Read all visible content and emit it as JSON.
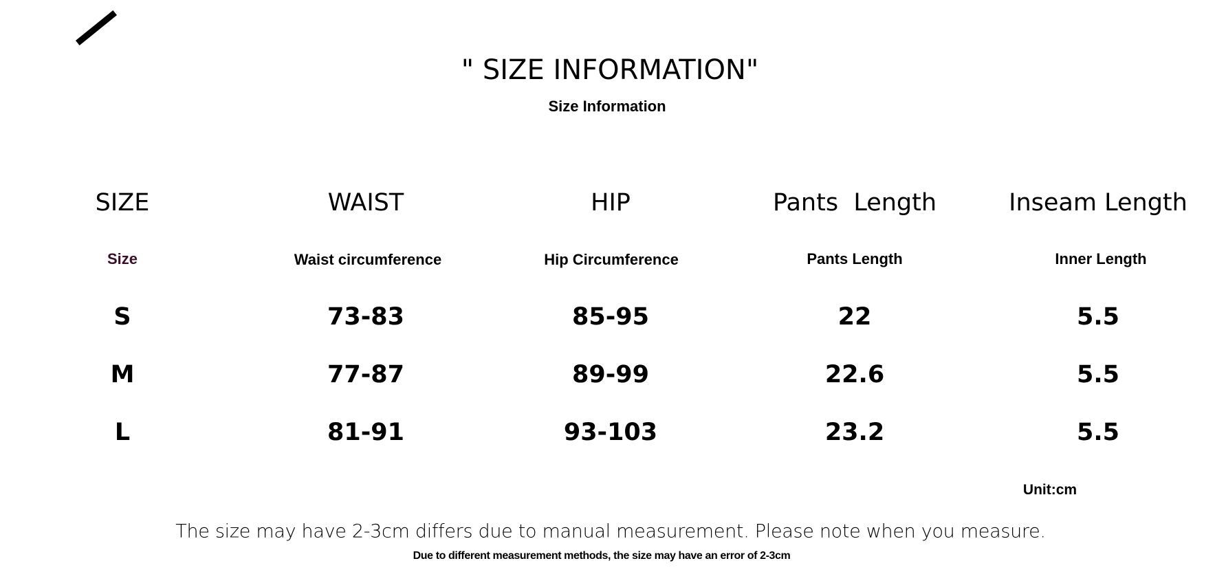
{
  "header": {
    "title": "\" SIZE INFORMATION\"",
    "subtitle": "Size Information"
  },
  "table": {
    "columns": [
      {
        "label": "SIZE",
        "sublabel": "Size",
        "sublabel_color": "#3a0f2a"
      },
      {
        "label": "WAIST",
        "sublabel": "Waist circumference"
      },
      {
        "label": "HIP",
        "sublabel": "Hip Circumference"
      },
      {
        "label": "Pants  Length",
        "sublabel": "Pants Length"
      },
      {
        "label": "Inseam Length",
        "sublabel": "Inner Length"
      }
    ],
    "rows": [
      [
        "S",
        "73-83",
        "85-95",
        "22",
        "5.5"
      ],
      [
        "M",
        "77-87",
        "89-99",
        "22.6",
        "5.5"
      ],
      [
        "L",
        "81-91",
        "93-103",
        "23.2",
        "5.5"
      ]
    ]
  },
  "unit": "Unit:cm",
  "notes": {
    "main": "The size may have 2-3cm differs due to manual measurement. Please note when you measure.",
    "secondary": "Due to different measurement methods, the size may have an error of 2-3cm"
  }
}
